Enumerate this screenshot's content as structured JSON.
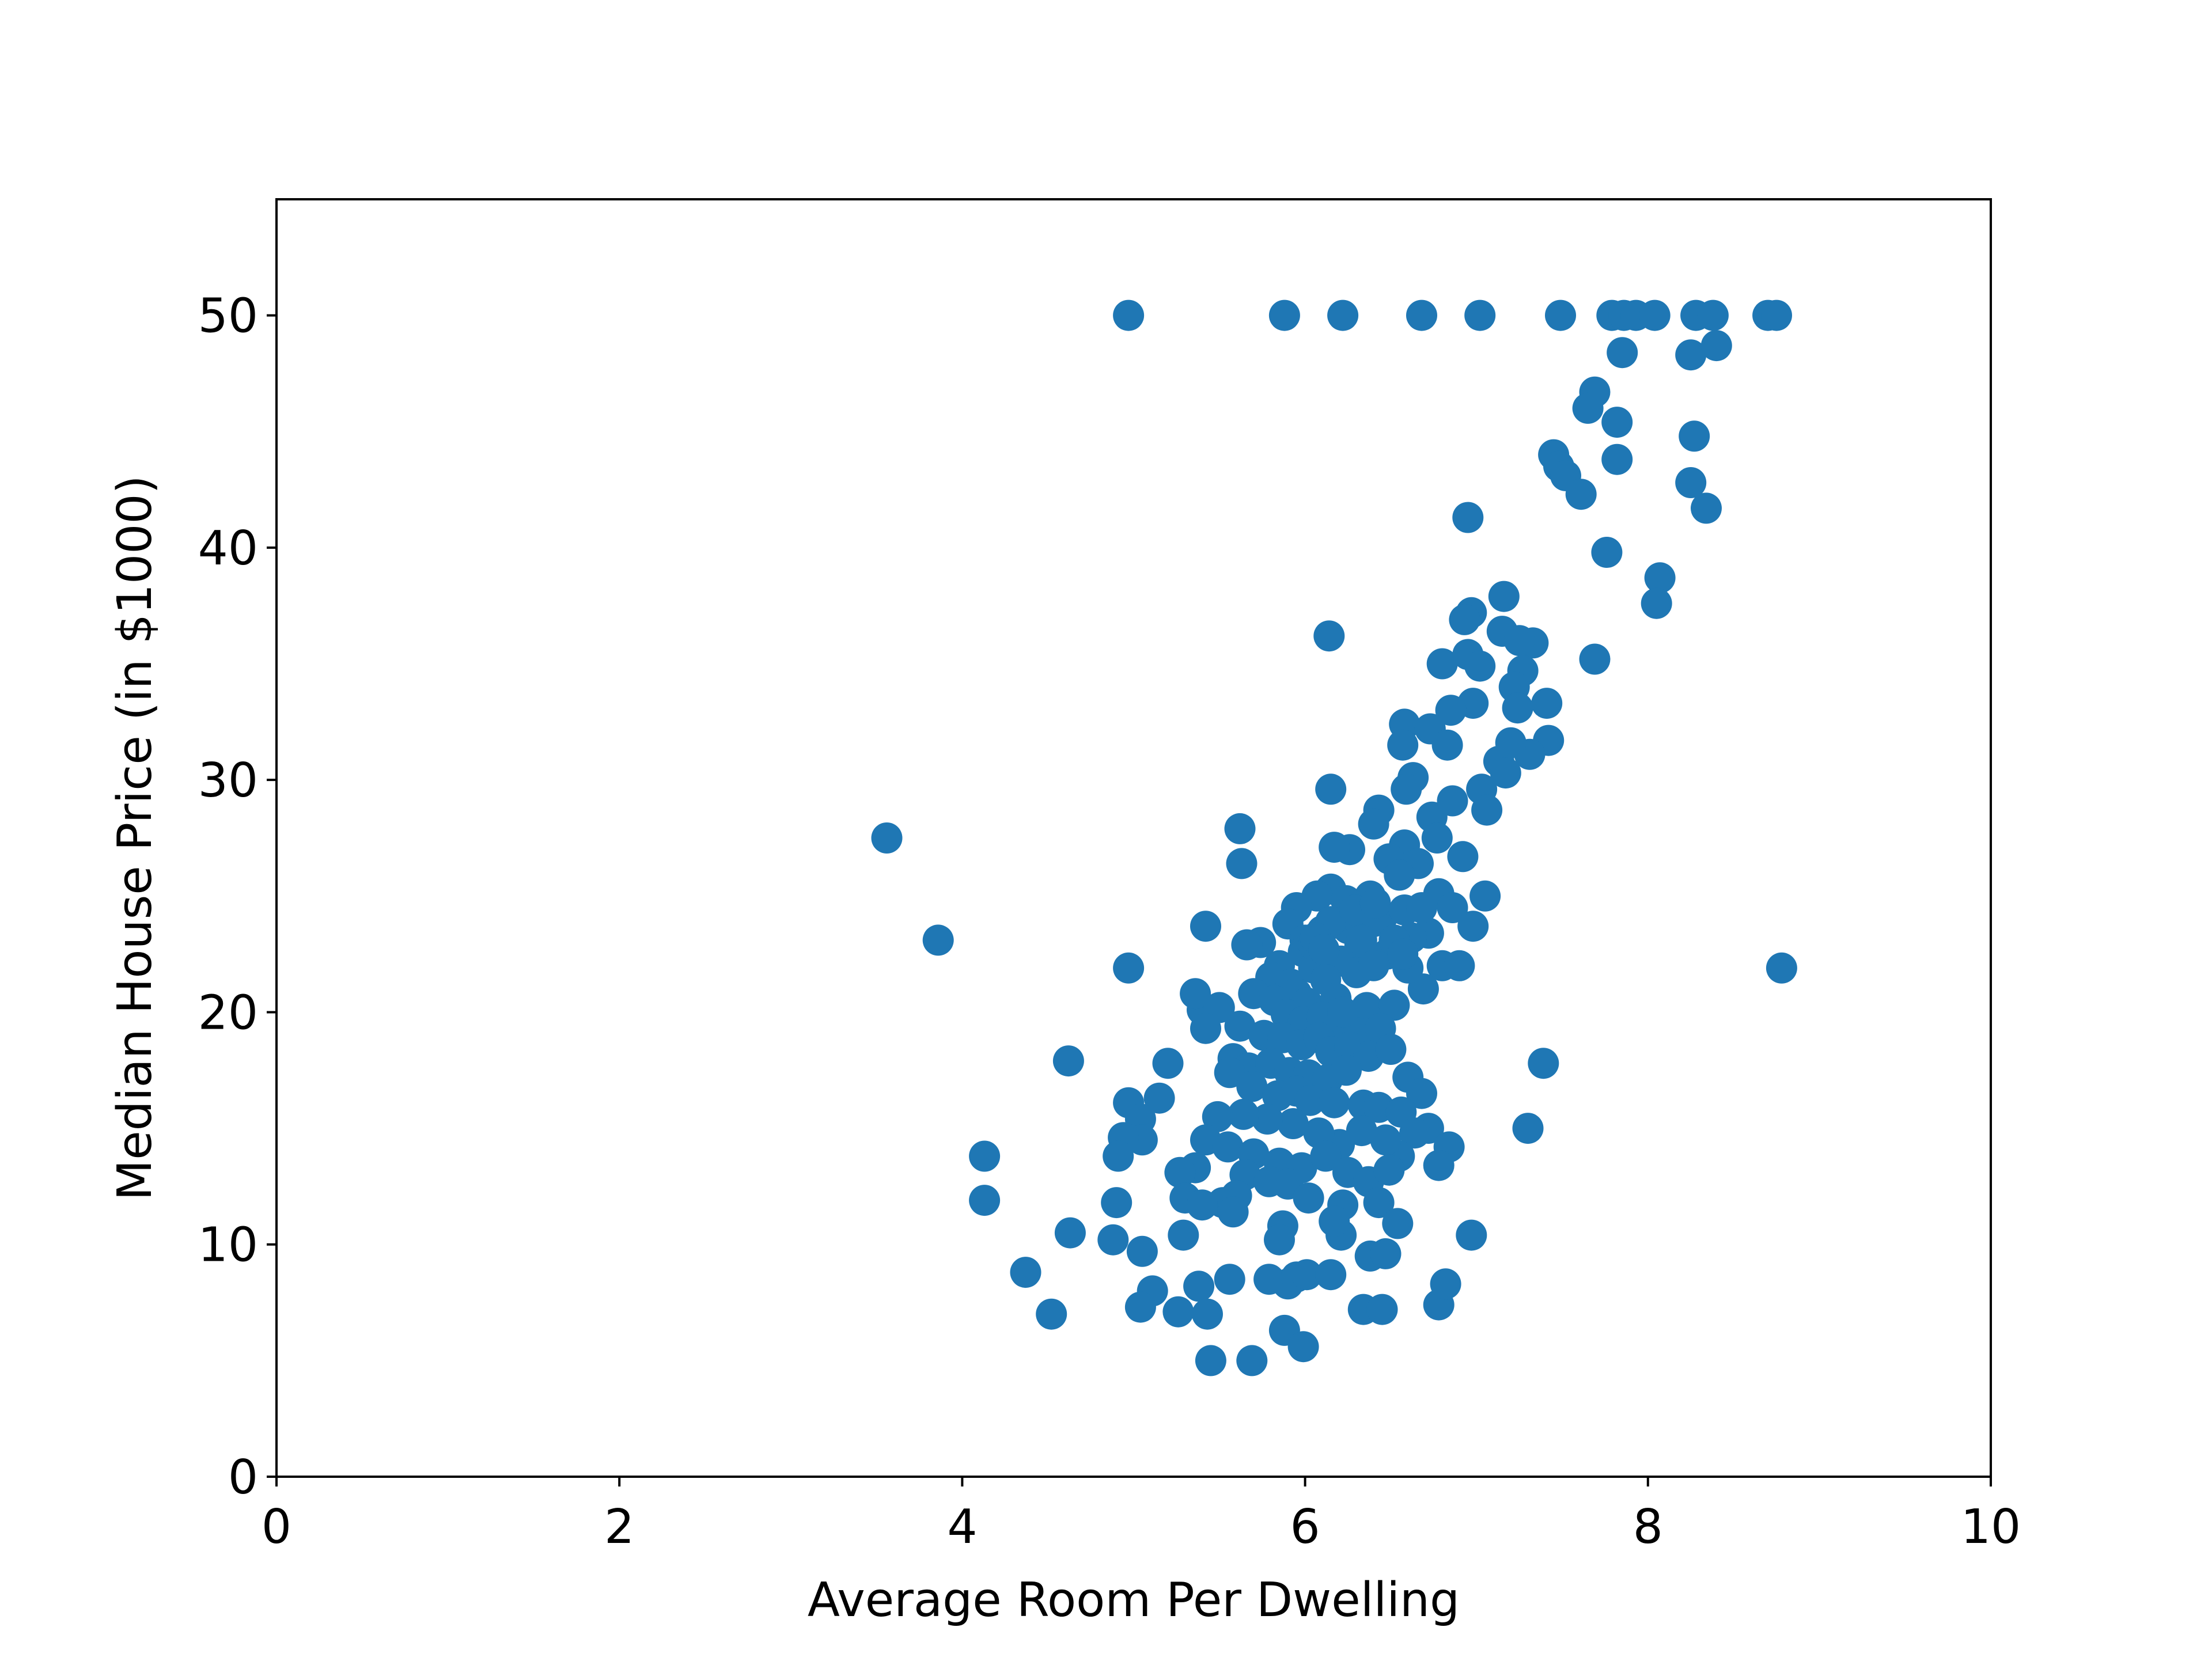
{
  "chart_data": {
    "type": "scatter",
    "title": "",
    "xlabel": "Average Room Per Dwelling",
    "ylabel": "Median House Price (in $1000)",
    "xlim": [
      0,
      10
    ],
    "ylim": [
      0,
      55
    ],
    "xticks": [
      "0",
      "2",
      "4",
      "6",
      "8",
      "10"
    ],
    "yticks": [
      "0",
      "10",
      "20",
      "30",
      "40",
      "50"
    ],
    "grid": false,
    "legend": "none",
    "marker_color": "#1f77b4",
    "series": [
      {
        "points": [
          [
            4.97,
            50.0
          ],
          [
            5.88,
            50.0
          ],
          [
            6.22,
            50.0
          ],
          [
            6.68,
            50.0
          ],
          [
            7.02,
            50.0
          ],
          [
            7.49,
            50.0
          ],
          [
            7.79,
            50.0
          ],
          [
            7.86,
            50.0
          ],
          [
            7.93,
            50.0
          ],
          [
            8.04,
            50.0
          ],
          [
            8.28,
            50.0
          ],
          [
            8.38,
            50.0
          ],
          [
            8.7,
            50.0
          ],
          [
            8.75,
            50.0
          ],
          [
            7.85,
            48.4
          ],
          [
            8.25,
            48.3
          ],
          [
            8.4,
            48.7
          ],
          [
            7.69,
            46.7
          ],
          [
            7.65,
            46.0
          ],
          [
            7.82,
            45.4
          ],
          [
            8.27,
            44.8
          ],
          [
            7.45,
            44.0
          ],
          [
            7.48,
            43.5
          ],
          [
            7.52,
            43.1
          ],
          [
            7.82,
            43.8
          ],
          [
            8.25,
            42.8
          ],
          [
            7.61,
            42.3
          ],
          [
            8.34,
            41.7
          ],
          [
            6.95,
            41.3
          ],
          [
            7.76,
            39.8
          ],
          [
            8.07,
            38.7
          ],
          [
            8.05,
            37.6
          ],
          [
            7.16,
            37.9
          ],
          [
            6.97,
            37.2
          ],
          [
            6.93,
            36.9
          ],
          [
            7.15,
            36.4
          ],
          [
            7.33,
            35.9
          ],
          [
            7.25,
            36.0
          ],
          [
            6.14,
            36.2
          ],
          [
            7.69,
            35.2
          ],
          [
            6.8,
            35.0
          ],
          [
            6.95,
            35.4
          ],
          [
            7.02,
            34.9
          ],
          [
            7.27,
            34.7
          ],
          [
            7.22,
            34.0
          ],
          [
            7.41,
            33.3
          ],
          [
            6.98,
            33.3
          ],
          [
            6.85,
            33.0
          ],
          [
            7.42,
            31.7
          ],
          [
            7.31,
            31.1
          ],
          [
            7.24,
            33.1
          ],
          [
            6.58,
            32.4
          ],
          [
            6.73,
            32.2
          ],
          [
            6.83,
            31.5
          ],
          [
            6.57,
            31.5
          ],
          [
            7.13,
            30.8
          ],
          [
            7.2,
            31.6
          ],
          [
            6.63,
            30.1
          ],
          [
            6.59,
            29.6
          ],
          [
            6.15,
            29.6
          ],
          [
            6.43,
            28.7
          ],
          [
            6.4,
            28.1
          ],
          [
            6.74,
            28.4
          ],
          [
            6.86,
            29.1
          ],
          [
            7.03,
            29.6
          ],
          [
            7.17,
            30.3
          ],
          [
            7.06,
            28.7
          ],
          [
            6.77,
            27.5
          ],
          [
            6.58,
            27.2
          ],
          [
            6.49,
            26.6
          ],
          [
            6.26,
            27.0
          ],
          [
            6.92,
            26.7
          ],
          [
            6.66,
            26.4
          ],
          [
            5.62,
            27.9
          ],
          [
            5.63,
            26.4
          ],
          [
            6.17,
            27.1
          ],
          [
            6.55,
            25.9
          ],
          [
            6.38,
            25.0
          ],
          [
            6.78,
            25.1
          ],
          [
            6.86,
            24.5
          ],
          [
            7.05,
            25.0
          ],
          [
            6.98,
            23.7
          ],
          [
            6.72,
            23.4
          ],
          [
            6.8,
            22.0
          ],
          [
            6.9,
            22.0
          ],
          [
            6.69,
            21.0
          ],
          [
            6.15,
            25.3
          ],
          [
            6.07,
            25.0
          ],
          [
            6.24,
            24.8
          ],
          [
            5.95,
            24.5
          ],
          [
            6.45,
            24.1
          ],
          [
            5.9,
            23.8
          ],
          [
            6.0,
            23.1
          ],
          [
            6.32,
            22.9
          ],
          [
            6.1,
            23.5
          ],
          [
            5.99,
            22.6
          ],
          [
            6.21,
            22.2
          ],
          [
            6.05,
            21.9
          ],
          [
            5.85,
            22.0
          ],
          [
            5.74,
            23.0
          ],
          [
            5.66,
            22.9
          ],
          [
            5.8,
            21.5
          ],
          [
            5.92,
            21.2
          ],
          [
            6.12,
            21.4
          ],
          [
            6.3,
            21.7
          ],
          [
            6.48,
            22.5
          ],
          [
            6.62,
            23.2
          ],
          [
            6.4,
            23.9
          ],
          [
            6.25,
            23.6
          ],
          [
            5.95,
            20.8
          ],
          [
            6.01,
            20.4
          ],
          [
            6.18,
            20.6
          ],
          [
            6.36,
            20.2
          ],
          [
            6.52,
            20.3
          ],
          [
            5.7,
            20.8
          ],
          [
            5.82,
            20.5
          ],
          [
            5.89,
            19.9
          ],
          [
            5.99,
            19.6
          ],
          [
            6.1,
            19.8
          ],
          [
            6.21,
            19.4
          ],
          [
            6.31,
            19.1
          ],
          [
            6.44,
            19.3
          ],
          [
            5.62,
            19.4
          ],
          [
            5.76,
            19.0
          ],
          [
            5.87,
            18.9
          ],
          [
            5.98,
            18.6
          ],
          [
            6.08,
            18.9
          ],
          [
            6.15,
            18.3
          ],
          [
            6.26,
            18.5
          ],
          [
            6.37,
            18.1
          ],
          [
            6.5,
            18.4
          ],
          [
            5.58,
            18.0
          ],
          [
            5.67,
            17.6
          ],
          [
            5.8,
            17.8
          ],
          [
            5.91,
            17.4
          ],
          [
            6.02,
            17.3
          ],
          [
            6.13,
            17.1
          ],
          [
            6.24,
            17.5
          ],
          [
            5.56,
            17.4
          ],
          [
            5.69,
            16.8
          ],
          [
            5.84,
            16.4
          ],
          [
            5.95,
            16.6
          ],
          [
            6.03,
            16.2
          ],
          [
            6.17,
            16.1
          ],
          [
            6.34,
            16.0
          ],
          [
            6.43,
            15.9
          ],
          [
            6.6,
            17.2
          ],
          [
            6.68,
            16.5
          ],
          [
            6.56,
            15.7
          ],
          [
            6.72,
            15.0
          ],
          [
            6.84,
            14.2
          ],
          [
            6.64,
            14.8
          ],
          [
            6.78,
            13.4
          ],
          [
            6.55,
            13.8
          ],
          [
            6.47,
            14.5
          ],
          [
            6.33,
            14.9
          ],
          [
            6.2,
            14.3
          ],
          [
            6.08,
            14.8
          ],
          [
            5.93,
            15.2
          ],
          [
            5.78,
            15.4
          ],
          [
            5.64,
            15.6
          ],
          [
            5.49,
            15.5
          ],
          [
            5.42,
            14.5
          ],
          [
            5.55,
            14.2
          ],
          [
            5.7,
            13.9
          ],
          [
            5.85,
            13.5
          ],
          [
            5.98,
            13.3
          ],
          [
            6.12,
            13.8
          ],
          [
            6.25,
            13.1
          ],
          [
            6.37,
            12.7
          ],
          [
            6.49,
            13.2
          ],
          [
            5.65,
            13.0
          ],
          [
            5.79,
            12.7
          ],
          [
            5.9,
            12.6
          ],
          [
            5.6,
            12.1
          ],
          [
            5.52,
            11.8
          ],
          [
            5.36,
            13.3
          ],
          [
            5.27,
            13.1
          ],
          [
            5.3,
            12.0
          ],
          [
            5.4,
            11.7
          ],
          [
            5.58,
            11.4
          ],
          [
            6.02,
            12.0
          ],
          [
            6.22,
            11.7
          ],
          [
            6.43,
            11.8
          ],
          [
            6.54,
            10.9
          ],
          [
            6.21,
            10.4
          ],
          [
            6.17,
            11.0
          ],
          [
            5.87,
            10.8
          ],
          [
            5.85,
            10.2
          ],
          [
            5.29,
            10.4
          ],
          [
            5.4,
            20.1
          ],
          [
            5.36,
            20.8
          ],
          [
            5.5,
            20.2
          ],
          [
            5.42,
            19.3
          ],
          [
            5.2,
            17.8
          ],
          [
            5.15,
            16.3
          ],
          [
            4.97,
            16.1
          ],
          [
            5.04,
            15.4
          ],
          [
            5.05,
            14.5
          ],
          [
            4.94,
            14.6
          ],
          [
            4.91,
            13.8
          ],
          [
            4.9,
            11.8
          ],
          [
            5.05,
            9.7
          ],
          [
            4.88,
            10.2
          ],
          [
            4.63,
            10.5
          ],
          [
            4.62,
            17.9
          ],
          [
            4.97,
            21.9
          ],
          [
            5.42,
            23.7
          ],
          [
            4.13,
            13.8
          ],
          [
            4.13,
            11.9
          ],
          [
            4.37,
            8.8
          ],
          [
            4.52,
            7.0
          ],
          [
            3.56,
            27.5
          ],
          [
            3.86,
            23.1
          ],
          [
            5.11,
            8.0
          ],
          [
            5.04,
            7.3
          ],
          [
            5.26,
            7.1
          ],
          [
            5.38,
            8.2
          ],
          [
            5.43,
            7.0
          ],
          [
            5.56,
            8.5
          ],
          [
            5.79,
            8.5
          ],
          [
            5.9,
            8.3
          ],
          [
            5.95,
            8.6
          ],
          [
            6.01,
            8.7
          ],
          [
            6.15,
            8.7
          ],
          [
            5.88,
            6.3
          ],
          [
            5.99,
            5.6
          ],
          [
            5.45,
            5.0
          ],
          [
            5.69,
            5.0
          ],
          [
            6.34,
            7.2
          ],
          [
            6.45,
            7.2
          ],
          [
            6.38,
            9.5
          ],
          [
            6.47,
            9.6
          ],
          [
            6.78,
            7.4
          ],
          [
            6.82,
            8.3
          ],
          [
            6.97,
            10.4
          ],
          [
            7.3,
            15.0
          ],
          [
            7.39,
            17.8
          ],
          [
            8.78,
            21.9
          ],
          [
            6.22,
            20.0
          ],
          [
            6.05,
            22.9
          ],
          [
            6.27,
            24.2
          ],
          [
            6.15,
            23.9
          ],
          [
            6.06,
            23.2
          ],
          [
            6.33,
            23.1
          ],
          [
            6.11,
            22.7
          ],
          [
            6.29,
            24.4
          ],
          [
            6.41,
            24.7
          ],
          [
            6.58,
            24.4
          ],
          [
            6.68,
            24.5
          ],
          [
            6.52,
            23.1
          ],
          [
            6.6,
            21.9
          ],
          [
            6.4,
            22.0
          ],
          [
            6.57,
            22.5
          ]
        ]
      }
    ]
  }
}
